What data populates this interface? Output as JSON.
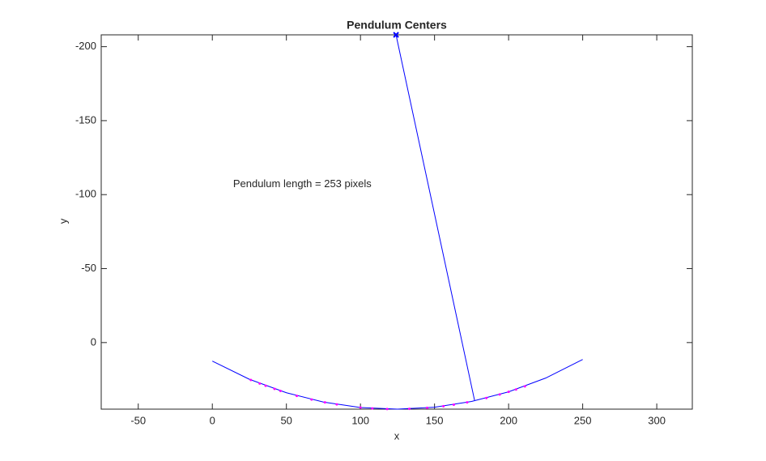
{
  "chart_data": {
    "type": "line",
    "title": "Pendulum Centers",
    "xlabel": "x",
    "ylabel": "y",
    "xlim": [
      -75,
      324
    ],
    "ylim": [
      -208,
      45
    ],
    "y_reverse": true,
    "xticks": [
      -50,
      0,
      50,
      100,
      150,
      200,
      250,
      300
    ],
    "yticks": [
      -200,
      -150,
      -100,
      -50,
      0
    ],
    "annotation": {
      "text": "Pendulum length = 253 pixels",
      "x": 14,
      "y": -107
    },
    "series": [
      {
        "name": "arc",
        "color": "#0000ff",
        "marker": "none",
        "x": [
          0,
          25,
          50,
          75,
          100,
          125,
          150,
          175,
          200,
          225,
          250
        ],
        "values": [
          12.5,
          24.8,
          33.9,
          40.2,
          43.9,
          45.0,
          43.7,
          39.8,
          33.3,
          24.0,
          11.4
        ]
      },
      {
        "name": "centers",
        "color": "#ff00ff",
        "marker": "dot",
        "line": false,
        "x": [
          26,
          32,
          36,
          42,
          46,
          57,
          67,
          76,
          84,
          100,
          108,
          118,
          133,
          145,
          156,
          163,
          172,
          185,
          194,
          200,
          205,
          211
        ],
        "values": [
          25.3,
          27.7,
          29.2,
          31.3,
          32.7,
          36.0,
          38.5,
          40.4,
          41.8,
          43.9,
          44.5,
          44.9,
          44.8,
          44.1,
          43.0,
          42.0,
          40.4,
          37.5,
          35.1,
          33.3,
          31.7,
          29.6
        ]
      },
      {
        "name": "pendulum",
        "color": "#0000ff",
        "marker": "pivot",
        "x": [
          124,
          177
        ],
        "values": [
          -208,
          39
        ]
      }
    ]
  }
}
